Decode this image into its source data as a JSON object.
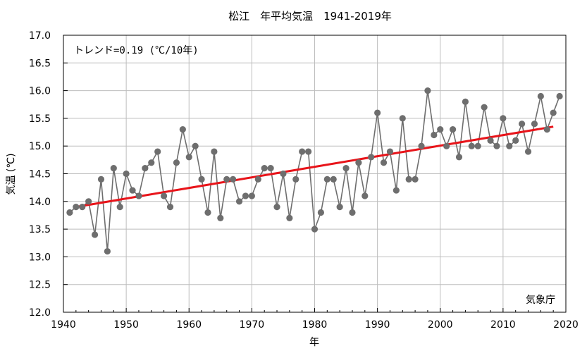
{
  "chart_data": {
    "type": "line",
    "title": "松江　年平均気温　1941-2019年",
    "xlabel": "年",
    "ylabel": "気温 (℃)",
    "trend_label": "トレンド=0.19 (℃/10年)",
    "source": "気象庁",
    "xlim": [
      1940,
      2020
    ],
    "ylim": [
      12.0,
      17.0
    ],
    "x_ticks": [
      "1940",
      "1950",
      "1960",
      "1970",
      "1980",
      "1990",
      "2000",
      "2010",
      "2020"
    ],
    "y_ticks": [
      "12.0",
      "12.5",
      "13.0",
      "13.5",
      "14.0",
      "14.5",
      "15.0",
      "15.5",
      "16.0",
      "16.5",
      "17.0"
    ],
    "series": [
      {
        "name": "年平均気温",
        "color": "#6e6e6e",
        "x": [
          1941,
          1942,
          1943,
          1944,
          1945,
          1946,
          1947,
          1948,
          1949,
          1950,
          1951,
          1952,
          1953,
          1954,
          1955,
          1956,
          1957,
          1958,
          1959,
          1960,
          1961,
          1962,
          1963,
          1964,
          1965,
          1966,
          1967,
          1968,
          1969,
          1970,
          1971,
          1972,
          1973,
          1974,
          1975,
          1976,
          1977,
          1978,
          1979,
          1980,
          1981,
          1982,
          1983,
          1984,
          1985,
          1986,
          1987,
          1988,
          1989,
          1990,
          1991,
          1992,
          1993,
          1994,
          1995,
          1996,
          1997,
          1998,
          1999,
          2000,
          2001,
          2002,
          2003,
          2004,
          2005,
          2006,
          2007,
          2008,
          2009,
          2010,
          2011,
          2012,
          2013,
          2014,
          2015,
          2016,
          2017,
          2018,
          2019
        ],
        "values": [
          13.8,
          13.9,
          13.9,
          14.0,
          13.4,
          14.4,
          13.1,
          14.6,
          13.9,
          14.5,
          14.2,
          14.1,
          14.6,
          14.7,
          14.9,
          14.1,
          13.9,
          14.7,
          15.3,
          14.8,
          15.0,
          14.4,
          13.8,
          14.9,
          13.7,
          14.4,
          14.4,
          14.0,
          14.1,
          14.1,
          14.4,
          14.6,
          14.6,
          13.9,
          14.5,
          13.7,
          14.4,
          14.9,
          14.9,
          13.5,
          13.8,
          14.4,
          14.4,
          13.9,
          14.6,
          13.8,
          14.7,
          14.1,
          14.8,
          15.6,
          14.7,
          14.9,
          14.2,
          15.5,
          14.4,
          14.4,
          15.0,
          16.0,
          15.2,
          15.3,
          15.0,
          15.3,
          14.8,
          15.8,
          15.0,
          15.0,
          15.7,
          15.1,
          15.0,
          15.5,
          15.0,
          15.1,
          15.4,
          14.9,
          15.4,
          15.9,
          15.3,
          15.6,
          15.9
        ]
      },
      {
        "name": "トレンド",
        "color": "#e8141a",
        "x": [
          1942,
          2018
        ],
        "values": [
          13.9,
          15.35
        ]
      }
    ]
  }
}
